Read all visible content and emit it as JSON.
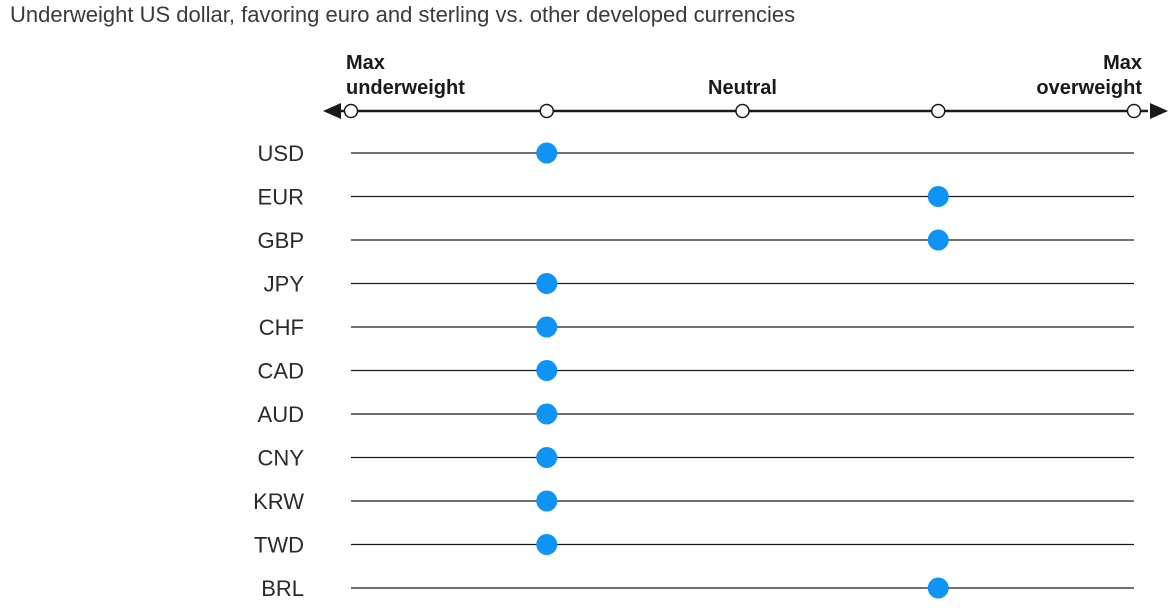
{
  "chart_data": {
    "type": "scatter",
    "title": "Underweight US dollar, favoring euro and sterling vs. other developed currencies",
    "scale_labels": [
      {
        "position": 0,
        "lines": [
          "Max",
          "underweight"
        ]
      },
      {
        "position": 2,
        "lines": [
          "Neutral"
        ]
      },
      {
        "position": 4,
        "lines": [
          "Max",
          "overweight"
        ]
      }
    ],
    "scale_range": [
      0,
      4
    ],
    "scale_ticks": [
      0,
      1,
      2,
      3,
      4
    ],
    "categories": [
      "USD",
      "EUR",
      "GBP",
      "JPY",
      "CHF",
      "CAD",
      "AUD",
      "CNY",
      "KRW",
      "TWD",
      "BRL"
    ],
    "values": [
      1,
      3,
      3,
      1,
      1,
      1,
      1,
      1,
      1,
      1,
      3
    ],
    "colors": {
      "dot": "#0f94f5",
      "line": "#1a1a1a",
      "tick_fill": "#ffffff"
    }
  }
}
